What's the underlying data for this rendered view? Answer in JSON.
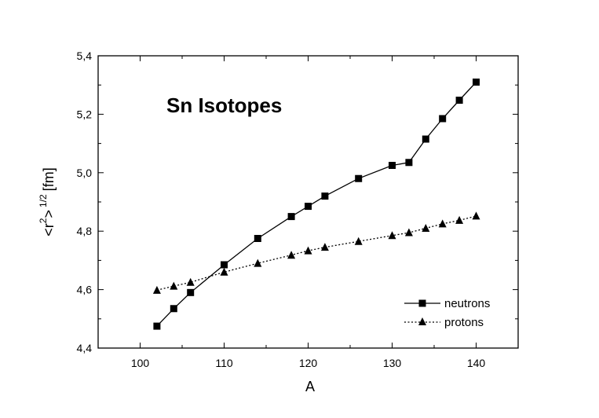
{
  "chart_data": {
    "type": "line",
    "annotation": "Sn Isotopes",
    "xlabel": "A",
    "ylabel_parts": {
      "base": "<r",
      "sup": "2",
      "close": ">",
      "exp": "1/2",
      "unit": "[fm]"
    },
    "xlim": [
      95,
      145
    ],
    "ylim": [
      4.4,
      5.4
    ],
    "xticks": [
      100,
      110,
      120,
      130,
      140
    ],
    "xtick_labels": [
      "100",
      "110",
      "120",
      "130",
      "140"
    ],
    "yticks": [
      4.4,
      4.6,
      4.8,
      5.0,
      5.2,
      5.4
    ],
    "ytick_labels": [
      "4,4",
      "4,6",
      "4,8",
      "5,0",
      "5,2",
      "5,4"
    ],
    "grid": false,
    "legend_position": "bottom-right",
    "series": [
      {
        "name": "neutrons",
        "marker": "square",
        "line": "solid",
        "x": [
          102,
          104,
          106,
          110,
          114,
          118,
          120,
          122,
          126,
          130,
          132,
          134,
          136,
          138,
          140
        ],
        "y": [
          4.475,
          4.535,
          4.59,
          4.685,
          4.775,
          4.85,
          4.885,
          4.92,
          4.98,
          5.025,
          5.035,
          5.115,
          5.185,
          5.248,
          5.31
        ]
      },
      {
        "name": "protons",
        "marker": "triangle",
        "line": "dotted",
        "x": [
          102,
          104,
          106,
          110,
          114,
          118,
          120,
          122,
          126,
          130,
          132,
          134,
          136,
          138,
          140
        ],
        "y": [
          4.598,
          4.612,
          4.625,
          4.66,
          4.69,
          4.718,
          4.733,
          4.745,
          4.765,
          4.785,
          4.795,
          4.81,
          4.825,
          4.837,
          4.852
        ]
      }
    ]
  }
}
